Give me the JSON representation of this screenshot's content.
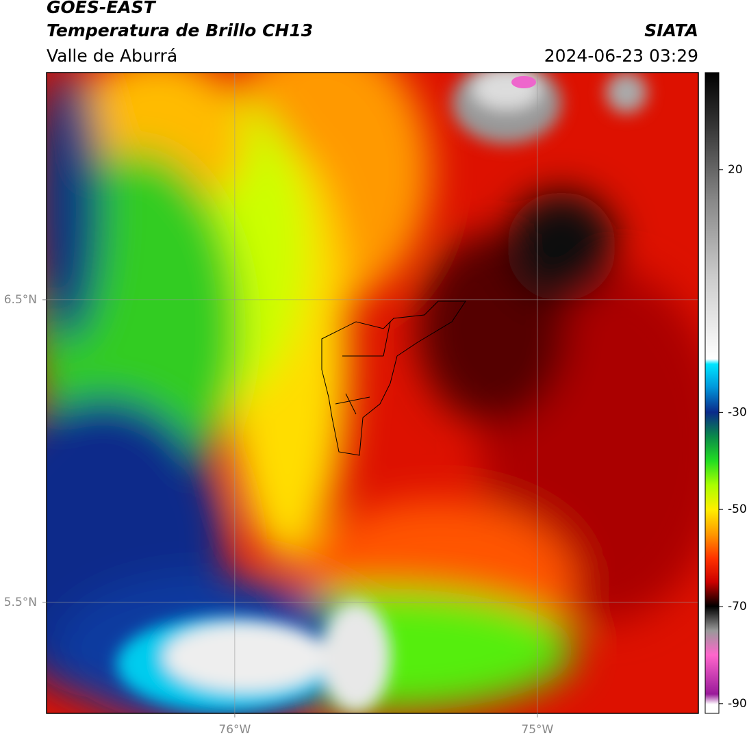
{
  "header": {
    "satellite": "GOES-EAST",
    "product": "Temperatura de Brillo CH13",
    "region": "Valle de Aburrá",
    "agency": "SIATA",
    "datetime": "2024-06-23 03:29"
  },
  "map": {
    "xlim": [
      -76.622,
      -74.468
    ],
    "ylim": [
      5.133,
      7.251
    ],
    "xticks": [
      {
        "value": -76,
        "label": "76°W"
      },
      {
        "value": -75,
        "label": "75°W"
      }
    ],
    "yticks": [
      {
        "value": 6.5,
        "label": "6.5°N"
      },
      {
        "value": 5.5,
        "label": "5.5°N"
      }
    ],
    "grid": true
  },
  "colorbar": {
    "lim": [
      -92,
      40
    ],
    "ticks": [
      20,
      -30,
      -50,
      -70,
      -90
    ]
  }
}
